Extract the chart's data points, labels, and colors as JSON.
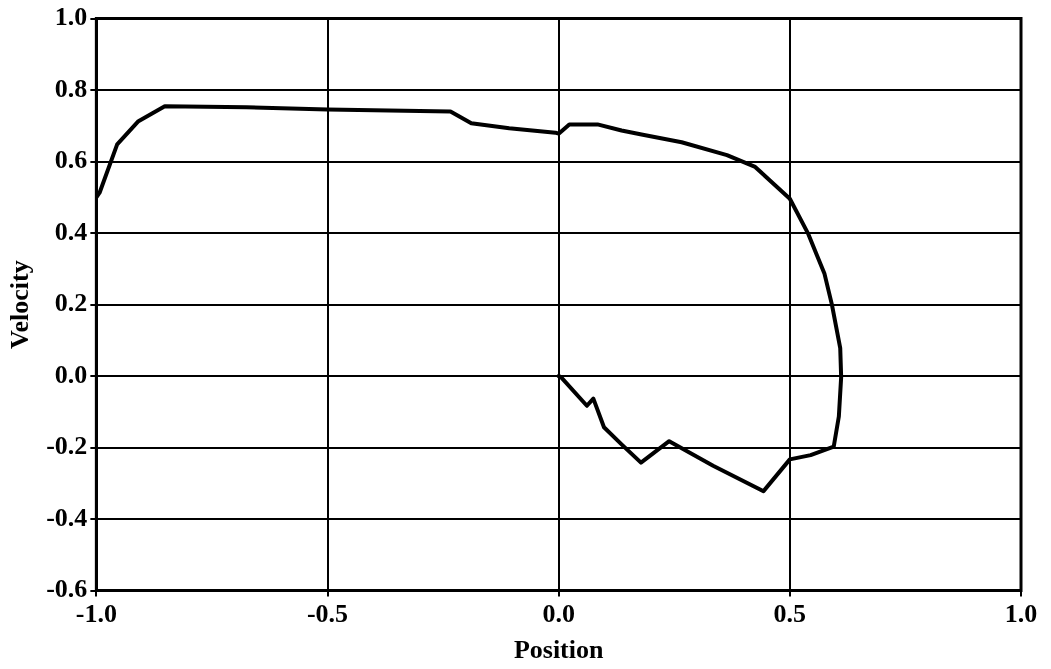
{
  "chart_data": {
    "type": "line",
    "xlabel": "Position",
    "ylabel": "Velocity",
    "series": [
      {
        "color": "#000000",
        "x": [
          0.0,
          0.005,
          0.061,
          0.075,
          0.098,
          0.136,
          0.178,
          0.239,
          0.334,
          0.443,
          0.5,
          0.545,
          0.595,
          0.606,
          0.611,
          0.609,
          0.591,
          0.575,
          0.539,
          0.5,
          0.425,
          0.364,
          0.266,
          0.182,
          0.136,
          0.084,
          0.023,
          0.0,
          -0.007,
          -0.107,
          -0.189,
          -0.234,
          -0.5,
          -0.675,
          -0.852,
          -0.909,
          -0.955,
          -0.993,
          -1.0
        ],
        "values": [
          0.0,
          -0.003,
          -0.083,
          -0.063,
          -0.143,
          -0.191,
          -0.242,
          -0.182,
          -0.251,
          -0.322,
          -0.233,
          -0.221,
          -0.197,
          -0.113,
          -0.003,
          0.078,
          0.2,
          0.286,
          0.4,
          0.496,
          0.585,
          0.618,
          0.654,
          0.675,
          0.687,
          0.704,
          0.704,
          0.678,
          0.681,
          0.693,
          0.707,
          0.74,
          0.746,
          0.752,
          0.755,
          0.713,
          0.648,
          0.513,
          0.5
        ]
      }
    ],
    "xlim": [
      -1.0,
      1.0
    ],
    "xticks": [
      {
        "value": -1,
        "label": "-1.0"
      },
      {
        "value": -0.5,
        "label": "-0.5"
      },
      {
        "value": 0,
        "label": "0.0"
      },
      {
        "value": 0.5,
        "label": "0.5"
      },
      {
        "value": 1,
        "label": "1.0"
      }
    ],
    "ylim": [
      -0.6,
      1.0
    ],
    "yticks": [
      {
        "value": -0.6,
        "label": "-0.6"
      },
      {
        "value": -0.4,
        "label": "-0.4"
      },
      {
        "value": -0.2,
        "label": "-0.2"
      },
      {
        "value": 0,
        "label": "0.0"
      },
      {
        "value": 0.2,
        "label": "0.2"
      },
      {
        "value": 0.4,
        "label": "0.4"
      },
      {
        "value": 0.6,
        "label": "0.6"
      },
      {
        "value": 0.8,
        "label": "0.8"
      },
      {
        "value": 1,
        "label": "1.0"
      }
    ],
    "grid": true,
    "legend": false,
    "marker": "none",
    "line_style": "solid"
  }
}
